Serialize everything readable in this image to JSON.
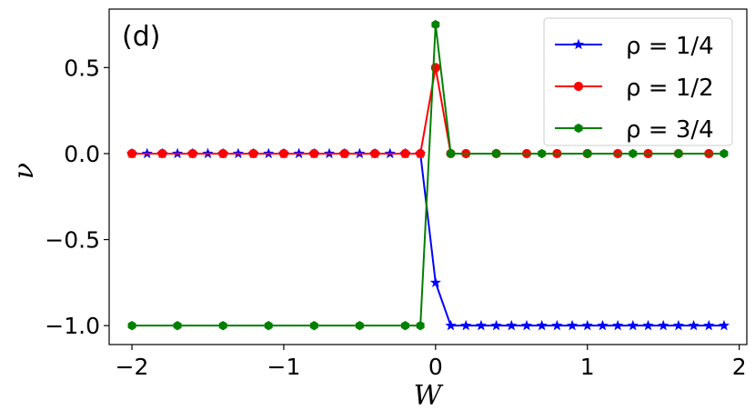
{
  "chart_data": {
    "type": "line",
    "panel_label": "(d)",
    "xlabel": "W",
    "ylabel": "ν",
    "xlim": [
      -2.15,
      2.05
    ],
    "ylim": [
      -1.11,
      0.84
    ],
    "xticks": [
      -2,
      -1,
      0,
      1,
      2
    ],
    "xtick_labels": [
      "−2",
      "−1",
      "0",
      "1",
      "2"
    ],
    "yticks": [
      -1.0,
      -0.5,
      0.0,
      0.5
    ],
    "ytick_labels": [
      "−1.0",
      "−0.5",
      "0.0",
      "0.5"
    ],
    "legend_position": "top-right",
    "series": [
      {
        "name": "ρ = 1/4",
        "color": "#0000ff",
        "marker": "star",
        "x": [
          -2.0,
          -1.9,
          -1.8,
          -1.7,
          -1.6,
          -1.5,
          -1.4,
          -1.3,
          -1.2,
          -1.1,
          -1.0,
          -0.9,
          -0.8,
          -0.7,
          -0.6,
          -0.5,
          -0.4,
          -0.3,
          -0.2,
          -0.1,
          0.0,
          0.1,
          0.2,
          0.3,
          0.4,
          0.5,
          0.6,
          0.7,
          0.8,
          0.9,
          1.0,
          1.1,
          1.2,
          1.3,
          1.4,
          1.5,
          1.6,
          1.7,
          1.8,
          1.9
        ],
        "y": [
          0,
          0,
          0,
          0,
          0,
          0,
          0,
          0,
          0,
          0,
          0,
          0,
          0,
          0,
          0,
          0,
          0,
          0,
          0,
          0,
          -0.75,
          -1,
          -1,
          -1,
          -1,
          -1,
          -1,
          -1,
          -1,
          -1,
          -1,
          -1,
          -1,
          -1,
          -1,
          -1,
          -1,
          -1,
          -1,
          -1
        ]
      },
      {
        "name": "ρ = 1/2",
        "color": "#ff0000",
        "marker": "circle",
        "x": [
          -2.0,
          -1.8,
          -1.6,
          -1.4,
          -1.2,
          -1.0,
          -0.8,
          -0.6,
          -0.4,
          -0.2,
          -0.1,
          0.0,
          0.1,
          0.2,
          0.4,
          0.6,
          0.8,
          1.0,
          1.2,
          1.4,
          1.6,
          1.8
        ],
        "y": [
          0,
          0,
          0,
          0,
          0,
          0,
          0,
          0,
          0,
          0,
          0,
          0.5,
          0,
          0,
          0,
          0,
          0,
          0,
          0,
          0,
          0,
          0
        ]
      },
      {
        "name": "ρ = 3/4",
        "color": "#008000",
        "marker": "hexagon",
        "x": [
          -2.0,
          -1.7,
          -1.4,
          -1.1,
          -0.8,
          -0.5,
          -0.2,
          -0.1,
          0.0,
          0.1,
          0.4,
          0.7,
          1.0,
          1.3,
          1.6,
          1.9
        ],
        "y": [
          -1,
          -1,
          -1,
          -1,
          -1,
          -1,
          -1,
          -1,
          0.75,
          0,
          0,
          0,
          0,
          0,
          0,
          0
        ]
      }
    ]
  }
}
